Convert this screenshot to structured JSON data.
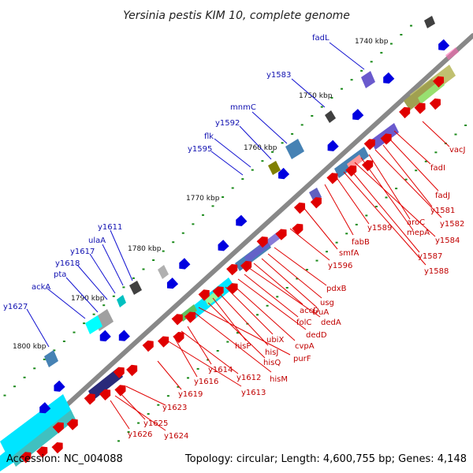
{
  "title": "Yersinia pestis KIM 10, complete genome",
  "footer": {
    "accession": "Accession: NC_004088",
    "summary": "Topology: circular; Length: 4,600,755 bp; Genes: 4,148"
  },
  "colors": {
    "backbone": "#888888",
    "forward_gene": "#e00000",
    "reverse_gene": "#0000e0",
    "feature_palette": [
      "#4682b4",
      "#00ffff",
      "#6a5acd",
      "#808000",
      "#c0c000",
      "#98fb98",
      "#ff69b4",
      "#1e1e6e",
      "#a0a0a0",
      "#404040"
    ]
  },
  "kbp_ticks": [
    "1740 kbp",
    "1750 kbp",
    "1760 kbp",
    "1770 kbp",
    "1780 kbp",
    "1790 kbp",
    "1800 kbp"
  ],
  "genes_outer": [
    "fadL",
    "y1583",
    "mnmC",
    "y1592",
    "flk",
    "y1595",
    "y1611",
    "ulaA",
    "y1617",
    "y1618",
    "pta",
    "ackA",
    "y1627"
  ],
  "genes_inner": [
    "vacJ",
    "fadI",
    "fadJ",
    "y1581",
    "y1582",
    "aroC",
    "mepA",
    "y1584",
    "y1587",
    "y1588",
    "y1589",
    "fabB",
    "smfA",
    "y1596",
    "pdxB",
    "usg",
    "truA",
    "accD",
    "dedA",
    "folC",
    "dedD",
    "cvpA",
    "ubiX",
    "hisJ",
    "hisP",
    "hisQ",
    "purF",
    "hisM",
    "y1614",
    "y1612",
    "y1616",
    "y1613",
    "y1619",
    "y1623",
    "y1625",
    "y1626",
    "y1624"
  ]
}
